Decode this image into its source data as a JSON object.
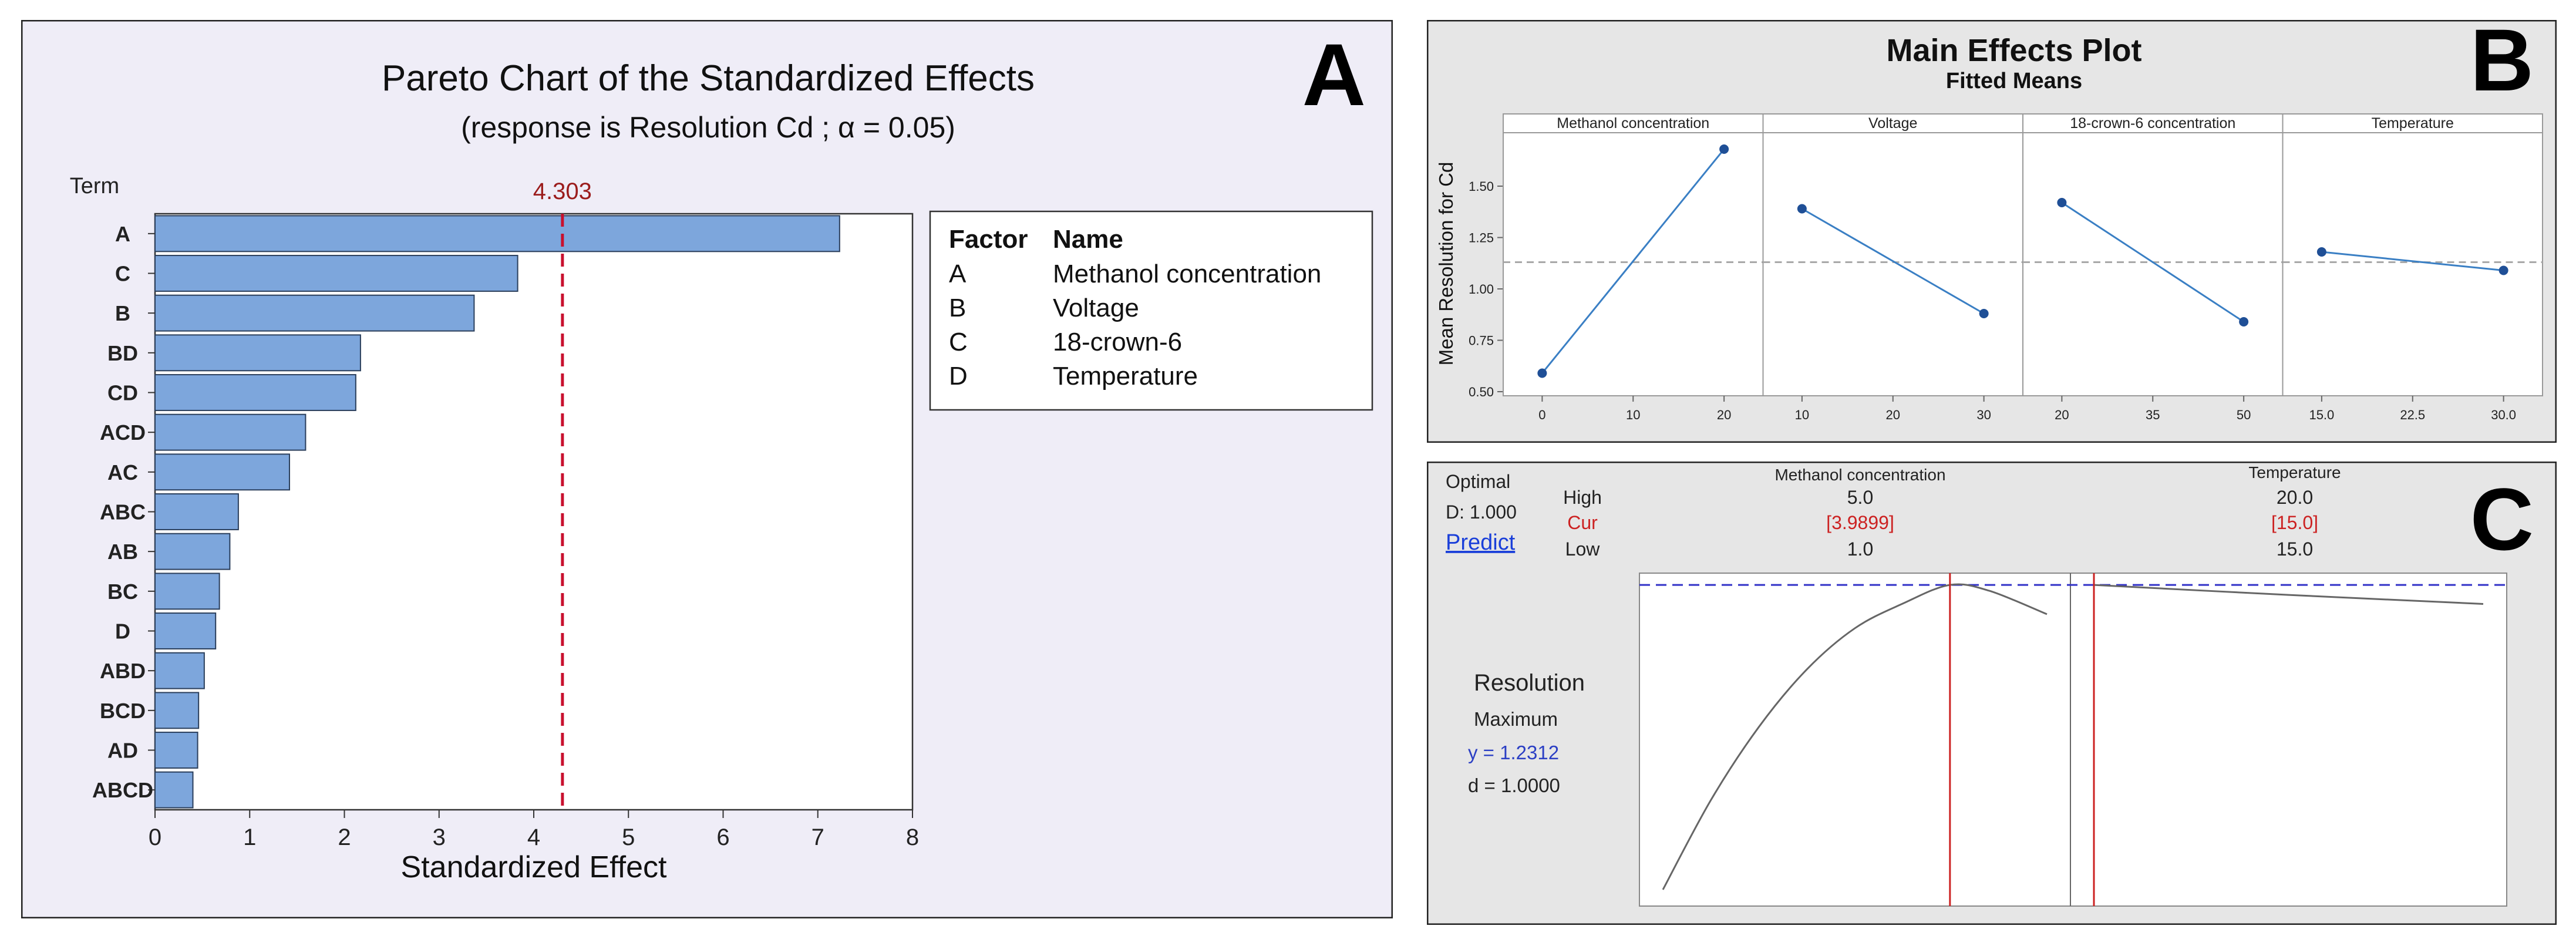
{
  "panel_letters": {
    "a": "A",
    "b": "B",
    "c": "C"
  },
  "colors": {
    "panel_a_bg": "#efedf7",
    "panel_bc_bg": "#e6e6e6",
    "bar_fill": "#7da6dc",
    "bar_stroke": "#2b3f5c",
    "reference_line": "#c8102e",
    "reference_label": "#9b1c1c",
    "series_line": "#3a7fc4",
    "series_point": "#1f4f96",
    "mean_line": "#a9a9a9",
    "target_line": "#3232c8",
    "current_line": "#cc2222",
    "current_text": "#cc2222",
    "predict_link": "#1a3fd9",
    "y_value": "#2b3fc4"
  },
  "chart_data": [
    {
      "id": "pareto",
      "type": "bar",
      "orientation": "horizontal",
      "title": "Pareto Chart of the Standardized Effects",
      "subtitle": "(response is Resolution Cd ; α = 0.05)",
      "category_axis_label": "Term",
      "xlabel": "Standardized Effect",
      "categories": [
        "A",
        "C",
        "B",
        "BD",
        "CD",
        "ACD",
        "AC",
        "ABC",
        "AB",
        "BC",
        "D",
        "ABD",
        "BCD",
        "AD",
        "ABCD"
      ],
      "values": [
        7.23,
        3.83,
        3.37,
        2.17,
        2.12,
        1.59,
        1.42,
        0.88,
        0.79,
        0.68,
        0.64,
        0.52,
        0.46,
        0.45,
        0.4
      ],
      "xlim": [
        0,
        8
      ],
      "xticks": [
        "0",
        "1",
        "2",
        "3",
        "4",
        "5",
        "6",
        "7",
        "8"
      ],
      "reference": {
        "value": 4.303,
        "label": "4.303"
      },
      "legend": {
        "placement": "right",
        "headers": [
          "Factor",
          "Name"
        ],
        "rows": [
          {
            "factor": "A",
            "name": "Methanol concentration"
          },
          {
            "factor": "B",
            "name": "Voltage"
          },
          {
            "factor": "C",
            "name": "18-crown-6"
          },
          {
            "factor": "D",
            "name": "Temperature"
          }
        ]
      }
    },
    {
      "id": "main-effects",
      "type": "line",
      "title": "Main Effects Plot",
      "subtitle": "Fitted Means",
      "ylabel": "Mean Resolution for Cd",
      "ylim": [
        0.48,
        1.76
      ],
      "yticks": [
        "0.50",
        "0.75",
        "1.00",
        "1.25",
        "1.50"
      ],
      "overall_mean": 1.13,
      "panels": [
        {
          "title": "Methanol concentration",
          "xlim": [
            0,
            20
          ],
          "xticks": [
            "0",
            "10",
            "20"
          ],
          "x": [
            0,
            20
          ],
          "y": [
            0.59,
            1.68
          ]
        },
        {
          "title": "Voltage",
          "xlim": [
            10,
            30
          ],
          "xticks": [
            "10",
            "20",
            "30"
          ],
          "x": [
            10,
            30
          ],
          "y": [
            1.39,
            0.88
          ]
        },
        {
          "title": "18-crown-6 concentration",
          "xlim": [
            20,
            50
          ],
          "xticks": [
            "20",
            "35",
            "50"
          ],
          "x": [
            20,
            50
          ],
          "y": [
            1.42,
            0.84
          ]
        },
        {
          "title": "Temperature",
          "xlim": [
            15,
            30
          ],
          "xticks": [
            "15.0",
            "22.5",
            "30.0"
          ],
          "x": [
            15,
            30
          ],
          "y": [
            1.18,
            1.09
          ]
        }
      ]
    },
    {
      "id": "optimizer",
      "type": "line",
      "info": {
        "optimal": "Optimal",
        "d": "D: 1.000",
        "predict": "Predict"
      },
      "row_labels": {
        "high": "High",
        "cur": "Cur",
        "low": "Low"
      },
      "columns": [
        {
          "name": "Methanol concentration",
          "high": "5.0",
          "cur": "[3.9899]",
          "low": "1.0"
        },
        {
          "name": "Temperature",
          "high": "20.0",
          "cur": "[15.0]",
          "low": "15.0"
        }
      ],
      "response": {
        "name": "Resolution",
        "goal": "Maximum",
        "y": "y = 1.2312",
        "d": "d = 1.0000"
      },
      "target": 1.2312,
      "ylim": [
        0.45,
        1.26
      ],
      "panels": [
        {
          "xlim": [
            1.0,
            5.0
          ],
          "current": 3.9899,
          "x": [
            1.0,
            1.5,
            2.0,
            2.5,
            3.0,
            3.5,
            3.9899,
            4.4,
            5.0
          ],
          "y": [
            0.49,
            0.708,
            0.886,
            1.026,
            1.126,
            1.186,
            1.2312,
            1.217,
            1.16
          ]
        },
        {
          "xlim": [
            15.0,
            20.0
          ],
          "current": 15.0,
          "x": [
            15.0,
            17.5,
            20.0
          ],
          "y": [
            1.2312,
            1.207,
            1.185
          ]
        }
      ]
    }
  ]
}
